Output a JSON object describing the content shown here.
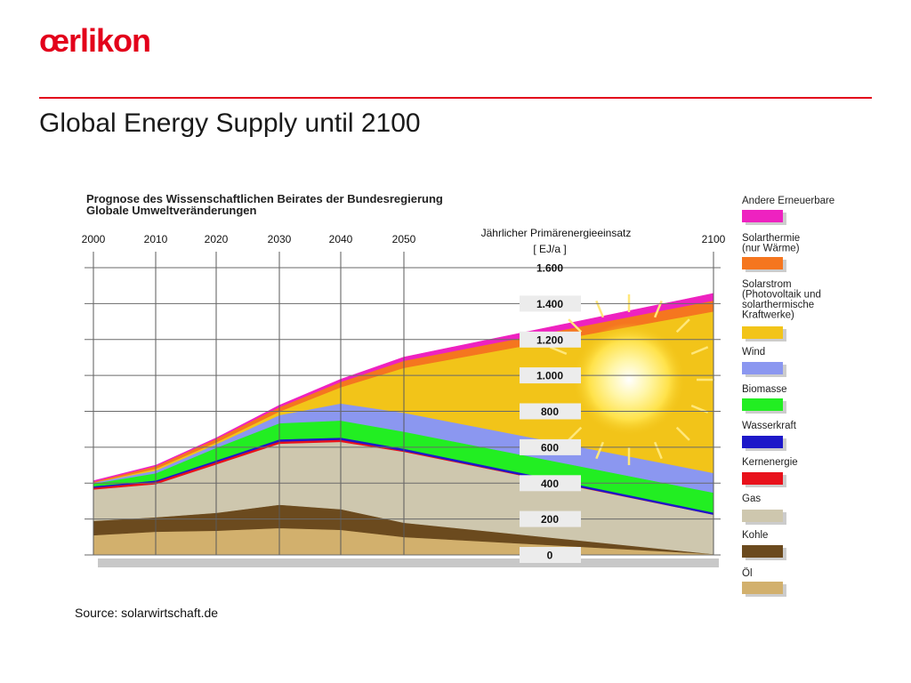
{
  "slide": {
    "logo": "œrlikon",
    "title": "Global Energy Supply until 2100",
    "source": "Source: solarwirtschaft.de"
  },
  "chart_data": {
    "type": "area",
    "stacked": true,
    "title_lines": [
      "Prognose des Wissenschaftlichen Beirates der Bundesregierung",
      "Globale Umweltveränderungen"
    ],
    "ylabel": "Jährlicher Primärenergieeinsatz",
    "yunit": "EJ/a",
    "x": [
      2000,
      2010,
      2020,
      2030,
      2040,
      2050,
      2100
    ],
    "x_labels": [
      "2000",
      "2010",
      "2020",
      "2030",
      "2040",
      "2050",
      "2100"
    ],
    "ylim": [
      0,
      1600
    ],
    "y_ticks": [
      0,
      200,
      400,
      600,
      800,
      1000,
      1200,
      1400,
      1600
    ],
    "y_tick_labels": [
      "0",
      "200",
      "400",
      "600",
      "800",
      "1.000",
      "1.200",
      "1.400",
      "1.600"
    ],
    "grid": true,
    "legend_position": "right",
    "series": [
      {
        "name": "Öl",
        "color": "#d2b06d",
        "values": [
          110,
          130,
          135,
          150,
          140,
          100,
          5
        ]
      },
      {
        "name": "Kohle",
        "color": "#6b4a1e",
        "values": [
          80,
          80,
          100,
          130,
          115,
          80,
          0
        ]
      },
      {
        "name": "Gas",
        "color": "#cec7ae",
        "values": [
          175,
          185,
          270,
          340,
          375,
          395,
          220
        ]
      },
      {
        "name": "Kernenergie",
        "color": "#e8111b",
        "values": [
          10,
          12,
          12,
          12,
          12,
          5,
          0
        ]
      },
      {
        "name": "Wasserkraft",
        "color": "#1d18c9",
        "values": [
          8,
          8,
          10,
          12,
          12,
          12,
          12
        ]
      },
      {
        "name": "Biomasse",
        "color": "#22ee22",
        "values": [
          15,
          40,
          70,
          90,
          95,
          95,
          110
        ]
      },
      {
        "name": "Wind",
        "color": "#8b97f0",
        "values": [
          5,
          15,
          20,
          45,
          95,
          105,
          110
        ]
      },
      {
        "name": "Solarstrom (Photovoltaik und solarthermische Kraftwerke)",
        "color": "#f2c419",
        "values": [
          0,
          10,
          10,
          20,
          90,
          250,
          900
        ]
      },
      {
        "name": "Solarthermie (nur Wärme)",
        "color": "#f5761f",
        "values": [
          5,
          15,
          20,
          25,
          30,
          40,
          60
        ]
      },
      {
        "name": "Andere Erneuerbare",
        "color": "#ee22c0",
        "values": [
          5,
          5,
          5,
          10,
          15,
          20,
          40
        ]
      }
    ],
    "legend": [
      {
        "lines": [
          "Andere Erneuerbare"
        ],
        "color": "#ee22c0"
      },
      {
        "lines": [
          "Solarthermie",
          "(nur Wärme)"
        ],
        "color": "#f5761f"
      },
      {
        "lines": [
          "Solarstrom",
          "(Photovoltaik und",
          "solarthermische",
          "Kraftwerke)"
        ],
        "color": "#f2c419"
      },
      {
        "lines": [
          "Wind"
        ],
        "color": "#8b97f0"
      },
      {
        "lines": [
          "Biomasse"
        ],
        "color": "#22ee22"
      },
      {
        "lines": [
          "Wasserkraft"
        ],
        "color": "#1d18c9"
      },
      {
        "lines": [
          "Kernenergie"
        ],
        "color": "#e8111b"
      },
      {
        "lines": [
          "Gas"
        ],
        "color": "#cec7ae"
      },
      {
        "lines": [
          "Kohle"
        ],
        "color": "#6b4a1e"
      },
      {
        "lines": [
          "Öl"
        ],
        "color": "#d2b06d"
      }
    ]
  }
}
